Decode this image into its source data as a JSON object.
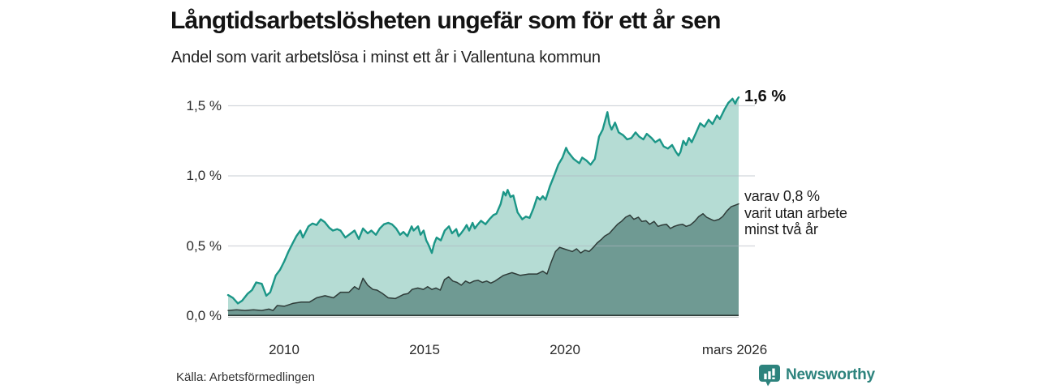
{
  "header": {
    "title": "Långtidsarbetslösheten ungefär som för ett år sen",
    "subtitle": "Andel som varit arbetslösa i minst ett år i Vallentuna kommun"
  },
  "footer": {
    "source": "Källa: Arbetsförmedlingen",
    "brand": "Newsworthy",
    "brand_color": "#2d837d",
    "brand_icon": "bar-chart-speech-bubble-icon"
  },
  "chart_data": {
    "type": "area",
    "title": "Långtidsarbetslösheten ungefär som för ett år sen",
    "subtitle": "Andel som varit arbetslösa i minst ett år i Vallentuna kommun",
    "xlabel": "",
    "ylabel": "",
    "grid": true,
    "legend_position": "none",
    "xlim": [
      2008,
      2026.17
    ],
    "ylim": [
      0,
      1.5
    ],
    "yticks": [
      {
        "label": "0,0 %",
        "value": 0
      },
      {
        "label": "0,5 %",
        "value": 0.5
      },
      {
        "label": "1,0 %",
        "value": 1.0
      },
      {
        "label": "1,5 %",
        "value": 1.5
      }
    ],
    "xticks": [
      {
        "label": "2010",
        "year": 2010
      },
      {
        "label": "2015",
        "year": 2015
      },
      {
        "label": "2020",
        "year": 2020
      },
      {
        "label": "mars 2026",
        "year": 2026.0
      }
    ],
    "colors": {
      "line_1yr": "#1b9687",
      "fill_1yr": "#b5dcd4",
      "line_2yr": "#2f3c39",
      "fill_2yr": "#6f9a93",
      "gridline": "rgba(173,181,192,0.55)",
      "baseline_dark": "#2f3c39",
      "baseline_gray": "#b3bab8"
    },
    "annotations": {
      "end_value_1yr": "1,6 %",
      "end_note_2yr_lines": [
        "varav 0,8 %",
        "varit utan arbete",
        "minst två år"
      ]
    },
    "series": [
      {
        "id": "minst-ett-ar",
        "name": "Andel arbetslösa minst ett år",
        "line_color": "#1b9687",
        "fill_color": "#b5dcd4",
        "line_width": 2.4,
        "end_value_pct": 1.6,
        "points": [
          [
            2008.0,
            0.15
          ],
          [
            2008.17,
            0.13
          ],
          [
            2008.35,
            0.09
          ],
          [
            2008.5,
            0.11
          ],
          [
            2008.7,
            0.16
          ],
          [
            2008.85,
            0.185
          ],
          [
            2009.0,
            0.24
          ],
          [
            2009.2,
            0.23
          ],
          [
            2009.36,
            0.145
          ],
          [
            2009.5,
            0.17
          ],
          [
            2009.7,
            0.29
          ],
          [
            2009.85,
            0.33
          ],
          [
            2010.0,
            0.39
          ],
          [
            2010.15,
            0.46
          ],
          [
            2010.3,
            0.52
          ],
          [
            2010.43,
            0.57
          ],
          [
            2010.57,
            0.61
          ],
          [
            2010.66,
            0.56
          ],
          [
            2010.86,
            0.64
          ],
          [
            2011.0,
            0.66
          ],
          [
            2011.15,
            0.65
          ],
          [
            2011.3,
            0.69
          ],
          [
            2011.44,
            0.67
          ],
          [
            2011.6,
            0.63
          ],
          [
            2011.73,
            0.61
          ],
          [
            2011.88,
            0.62
          ],
          [
            2012.0,
            0.61
          ],
          [
            2012.17,
            0.56
          ],
          [
            2012.3,
            0.58
          ],
          [
            2012.5,
            0.61
          ],
          [
            2012.65,
            0.55
          ],
          [
            2012.8,
            0.625
          ],
          [
            2012.97,
            0.59
          ],
          [
            2013.1,
            0.61
          ],
          [
            2013.26,
            0.58
          ],
          [
            2013.4,
            0.625
          ],
          [
            2013.55,
            0.655
          ],
          [
            2013.7,
            0.665
          ],
          [
            2013.83,
            0.655
          ],
          [
            2013.98,
            0.625
          ],
          [
            2014.12,
            0.58
          ],
          [
            2014.24,
            0.6
          ],
          [
            2014.38,
            0.57
          ],
          [
            2014.53,
            0.64
          ],
          [
            2014.6,
            0.61
          ],
          [
            2014.76,
            0.64
          ],
          [
            2014.85,
            0.58
          ],
          [
            2014.96,
            0.61
          ],
          [
            2015.05,
            0.54
          ],
          [
            2015.13,
            0.51
          ],
          [
            2015.25,
            0.45
          ],
          [
            2015.34,
            0.52
          ],
          [
            2015.42,
            0.56
          ],
          [
            2015.57,
            0.54
          ],
          [
            2015.71,
            0.61
          ],
          [
            2015.86,
            0.64
          ],
          [
            2015.97,
            0.59
          ],
          [
            2016.12,
            0.62
          ],
          [
            2016.2,
            0.57
          ],
          [
            2016.29,
            0.59
          ],
          [
            2016.4,
            0.62
          ],
          [
            2016.49,
            0.65
          ],
          [
            2016.58,
            0.61
          ],
          [
            2016.7,
            0.665
          ],
          [
            2016.78,
            0.625
          ],
          [
            2016.87,
            0.65
          ],
          [
            2017.0,
            0.68
          ],
          [
            2017.16,
            0.655
          ],
          [
            2017.3,
            0.69
          ],
          [
            2017.44,
            0.72
          ],
          [
            2017.55,
            0.73
          ],
          [
            2017.7,
            0.8
          ],
          [
            2017.8,
            0.885
          ],
          [
            2017.88,
            0.86
          ],
          [
            2017.95,
            0.9
          ],
          [
            2018.05,
            0.85
          ],
          [
            2018.15,
            0.86
          ],
          [
            2018.3,
            0.74
          ],
          [
            2018.47,
            0.69
          ],
          [
            2018.6,
            0.71
          ],
          [
            2018.73,
            0.7
          ],
          [
            2018.87,
            0.77
          ],
          [
            2019.0,
            0.85
          ],
          [
            2019.1,
            0.83
          ],
          [
            2019.2,
            0.855
          ],
          [
            2019.3,
            0.83
          ],
          [
            2019.45,
            0.925
          ],
          [
            2019.6,
            1.0
          ],
          [
            2019.75,
            1.08
          ],
          [
            2019.9,
            1.13
          ],
          [
            2020.03,
            1.2
          ],
          [
            2020.1,
            1.17
          ],
          [
            2020.3,
            1.12
          ],
          [
            2020.5,
            1.09
          ],
          [
            2020.6,
            1.13
          ],
          [
            2020.75,
            1.11
          ],
          [
            2020.9,
            1.08
          ],
          [
            2021.05,
            1.12
          ],
          [
            2021.2,
            1.28
          ],
          [
            2021.33,
            1.33
          ],
          [
            2021.5,
            1.455
          ],
          [
            2021.57,
            1.37
          ],
          [
            2021.65,
            1.33
          ],
          [
            2021.77,
            1.38
          ],
          [
            2021.9,
            1.31
          ],
          [
            2022.06,
            1.29
          ],
          [
            2022.2,
            1.26
          ],
          [
            2022.35,
            1.27
          ],
          [
            2022.5,
            1.31
          ],
          [
            2022.63,
            1.28
          ],
          [
            2022.78,
            1.26
          ],
          [
            2022.9,
            1.3
          ],
          [
            2023.07,
            1.27
          ],
          [
            2023.2,
            1.24
          ],
          [
            2023.36,
            1.26
          ],
          [
            2023.5,
            1.21
          ],
          [
            2023.65,
            1.195
          ],
          [
            2023.8,
            1.22
          ],
          [
            2023.94,
            1.17
          ],
          [
            2024.03,
            1.145
          ],
          [
            2024.1,
            1.17
          ],
          [
            2024.2,
            1.25
          ],
          [
            2024.3,
            1.22
          ],
          [
            2024.4,
            1.27
          ],
          [
            2024.5,
            1.24
          ],
          [
            2024.66,
            1.31
          ],
          [
            2024.8,
            1.375
          ],
          [
            2024.95,
            1.35
          ],
          [
            2025.1,
            1.4
          ],
          [
            2025.24,
            1.37
          ],
          [
            2025.4,
            1.43
          ],
          [
            2025.5,
            1.405
          ],
          [
            2025.67,
            1.475
          ],
          [
            2025.8,
            1.52
          ],
          [
            2025.95,
            1.55
          ],
          [
            2026.05,
            1.515
          ],
          [
            2026.1,
            1.54
          ],
          [
            2026.17,
            1.56
          ]
        ]
      },
      {
        "id": "minst-tva-ar",
        "name": "Andel arbetslösa minst två år",
        "line_color": "#2f3c39",
        "fill_color": "#6f9a93",
        "line_width": 1.5,
        "end_value_pct": 0.8,
        "points": [
          [
            2008.0,
            0.04
          ],
          [
            2008.3,
            0.045
          ],
          [
            2008.6,
            0.04
          ],
          [
            2008.9,
            0.045
          ],
          [
            2009.2,
            0.04
          ],
          [
            2009.45,
            0.05
          ],
          [
            2009.6,
            0.04
          ],
          [
            2009.75,
            0.075
          ],
          [
            2010.0,
            0.07
          ],
          [
            2010.3,
            0.09
          ],
          [
            2010.6,
            0.1
          ],
          [
            2010.9,
            0.1
          ],
          [
            2011.15,
            0.13
          ],
          [
            2011.45,
            0.145
          ],
          [
            2011.75,
            0.13
          ],
          [
            2012.0,
            0.17
          ],
          [
            2012.3,
            0.17
          ],
          [
            2012.5,
            0.21
          ],
          [
            2012.65,
            0.19
          ],
          [
            2012.8,
            0.27
          ],
          [
            2012.97,
            0.22
          ],
          [
            2013.15,
            0.19
          ],
          [
            2013.3,
            0.185
          ],
          [
            2013.5,
            0.16
          ],
          [
            2013.7,
            0.13
          ],
          [
            2013.95,
            0.125
          ],
          [
            2014.1,
            0.14
          ],
          [
            2014.25,
            0.155
          ],
          [
            2014.4,
            0.16
          ],
          [
            2014.55,
            0.19
          ],
          [
            2014.75,
            0.2
          ],
          [
            2014.95,
            0.19
          ],
          [
            2015.1,
            0.21
          ],
          [
            2015.25,
            0.19
          ],
          [
            2015.4,
            0.2
          ],
          [
            2015.55,
            0.185
          ],
          [
            2015.7,
            0.26
          ],
          [
            2015.85,
            0.28
          ],
          [
            2016.0,
            0.25
          ],
          [
            2016.15,
            0.24
          ],
          [
            2016.3,
            0.22
          ],
          [
            2016.45,
            0.25
          ],
          [
            2016.6,
            0.235
          ],
          [
            2016.75,
            0.25
          ],
          [
            2016.9,
            0.255
          ],
          [
            2017.05,
            0.24
          ],
          [
            2017.2,
            0.25
          ],
          [
            2017.35,
            0.235
          ],
          [
            2017.5,
            0.25
          ],
          [
            2017.8,
            0.29
          ],
          [
            2018.1,
            0.31
          ],
          [
            2018.4,
            0.29
          ],
          [
            2018.7,
            0.3
          ],
          [
            2019.0,
            0.3
          ],
          [
            2019.2,
            0.32
          ],
          [
            2019.35,
            0.3
          ],
          [
            2019.5,
            0.385
          ],
          [
            2019.65,
            0.46
          ],
          [
            2019.8,
            0.49
          ],
          [
            2019.95,
            0.48
          ],
          [
            2020.1,
            0.47
          ],
          [
            2020.25,
            0.46
          ],
          [
            2020.4,
            0.48
          ],
          [
            2020.55,
            0.45
          ],
          [
            2020.7,
            0.47
          ],
          [
            2020.85,
            0.46
          ],
          [
            2021.0,
            0.49
          ],
          [
            2021.13,
            0.52
          ],
          [
            2021.3,
            0.55
          ],
          [
            2021.4,
            0.57
          ],
          [
            2021.57,
            0.59
          ],
          [
            2021.7,
            0.62
          ],
          [
            2021.86,
            0.655
          ],
          [
            2022.0,
            0.675
          ],
          [
            2022.15,
            0.705
          ],
          [
            2022.3,
            0.72
          ],
          [
            2022.44,
            0.69
          ],
          [
            2022.6,
            0.705
          ],
          [
            2022.72,
            0.675
          ],
          [
            2022.87,
            0.68
          ],
          [
            2023.0,
            0.655
          ],
          [
            2023.16,
            0.675
          ],
          [
            2023.3,
            0.64
          ],
          [
            2023.45,
            0.65
          ],
          [
            2023.6,
            0.655
          ],
          [
            2023.74,
            0.625
          ],
          [
            2023.88,
            0.64
          ],
          [
            2024.03,
            0.65
          ],
          [
            2024.17,
            0.655
          ],
          [
            2024.3,
            0.64
          ],
          [
            2024.45,
            0.65
          ],
          [
            2024.6,
            0.675
          ],
          [
            2024.75,
            0.71
          ],
          [
            2024.9,
            0.73
          ],
          [
            2025.03,
            0.705
          ],
          [
            2025.18,
            0.69
          ],
          [
            2025.3,
            0.68
          ],
          [
            2025.47,
            0.69
          ],
          [
            2025.6,
            0.71
          ],
          [
            2025.75,
            0.75
          ],
          [
            2025.9,
            0.78
          ],
          [
            2026.04,
            0.79
          ],
          [
            2026.17,
            0.8
          ]
        ]
      }
    ]
  }
}
